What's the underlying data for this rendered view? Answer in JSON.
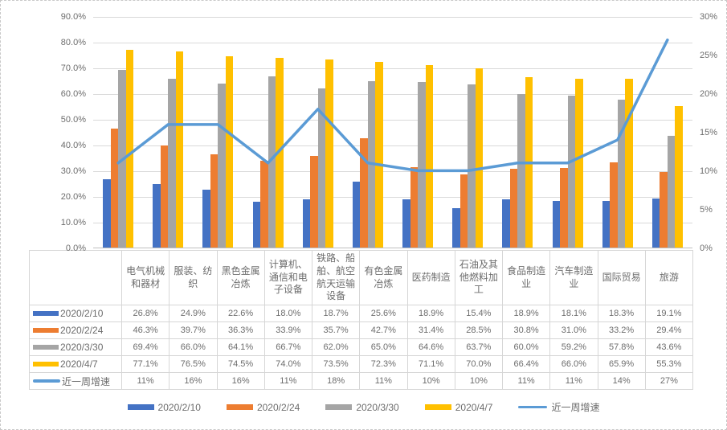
{
  "chart_data": {
    "type": "combo-bar-line",
    "title": "",
    "categories": [
      "电气机械和器材",
      "服装、纺织",
      "黑色金属冶炼",
      "计算机、通信和电子设备",
      "铁路、船舶、航空航天运输设备",
      "有色金属冶炼",
      "医药制造",
      "石油及其他燃料加工",
      "食品制造业",
      "汽车制造业",
      "国际贸易",
      "旅游"
    ],
    "series": [
      {
        "name": "2020/2/10",
        "type": "bar",
        "color": "#4472C4",
        "axis": "left",
        "values": [
          26.8,
          24.9,
          22.6,
          18.0,
          18.7,
          25.6,
          18.9,
          15.4,
          18.9,
          18.1,
          18.3,
          19.1
        ],
        "table_labels": [
          "26.8%",
          "24.9%",
          "22.6%",
          "18.0%",
          "18.7%",
          "25.6%",
          "18.9%",
          "15.4%",
          "18.9%",
          "18.1%",
          "18.3%",
          "19.1%"
        ]
      },
      {
        "name": "2020/2/24",
        "type": "bar",
        "color": "#ED7D31",
        "axis": "left",
        "values": [
          46.3,
          39.7,
          36.3,
          33.9,
          35.7,
          42.7,
          31.4,
          28.5,
          30.8,
          31.0,
          33.2,
          29.4
        ],
        "table_labels": [
          "46.3%",
          "39.7%",
          "36.3%",
          "33.9%",
          "35.7%",
          "42.7%",
          "31.4%",
          "28.5%",
          "30.8%",
          "31.0%",
          "33.2%",
          "29.4%"
        ]
      },
      {
        "name": "2020/3/30",
        "type": "bar",
        "color": "#A5A5A5",
        "axis": "left",
        "values": [
          69.4,
          66.0,
          64.1,
          66.7,
          62.0,
          65.0,
          64.6,
          63.7,
          60.0,
          59.2,
          57.8,
          43.6
        ],
        "table_labels": [
          "69.4%",
          "66.0%",
          "64.1%",
          "66.7%",
          "62.0%",
          "65.0%",
          "64.6%",
          "63.7%",
          "60.0%",
          "59.2%",
          "57.8%",
          "43.6%"
        ]
      },
      {
        "name": "2020/4/7",
        "type": "bar",
        "color": "#FFC000",
        "axis": "left",
        "values": [
          77.1,
          76.5,
          74.5,
          74.0,
          73.5,
          72.3,
          71.1,
          70.0,
          66.4,
          66.0,
          65.9,
          55.3
        ],
        "table_labels": [
          "77.1%",
          "76.5%",
          "74.5%",
          "74.0%",
          "73.5%",
          "72.3%",
          "71.1%",
          "70.0%",
          "66.4%",
          "66.0%",
          "65.9%",
          "55.3%"
        ]
      },
      {
        "name": "近一周增速",
        "type": "line",
        "color": "#5B9BD5",
        "axis": "right",
        "values": [
          11,
          16,
          16,
          11,
          18,
          11,
          10,
          10,
          11,
          11,
          14,
          27
        ],
        "table_labels": [
          "11%",
          "16%",
          "16%",
          "11%",
          "18%",
          "11%",
          "10%",
          "10%",
          "11%",
          "11%",
          "14%",
          "27%"
        ]
      }
    ],
    "left_axis": {
      "min": 0,
      "max": 90,
      "step": 10,
      "tick_labels": [
        "0.0%",
        "10.0%",
        "20.0%",
        "30.0%",
        "40.0%",
        "50.0%",
        "60.0%",
        "70.0%",
        "80.0%",
        "90.0%"
      ]
    },
    "right_axis": {
      "min": 0,
      "max": 30,
      "step": 5,
      "tick_labels": [
        "0%",
        "5%",
        "10%",
        "15%",
        "20%",
        "25%",
        "30%"
      ]
    },
    "legend_position": "bottom",
    "grid": true,
    "colors": {
      "gridline": "#D9D9D9",
      "axis_line": "#BFBFBF",
      "axis_text": "#6D6D6D",
      "table_border": "#D6D6D6",
      "table_text": "#6D6D6D"
    }
  }
}
